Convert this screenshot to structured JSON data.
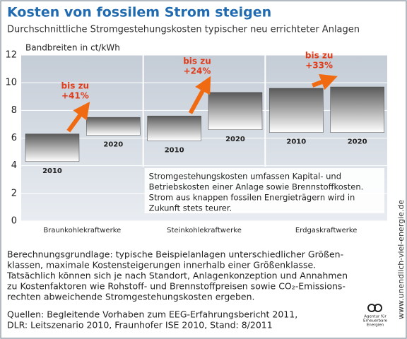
{
  "title": "Kosten von fossilem Strom steigen",
  "subtitle": "Durchschnittliche Stromgestehungskosten typischer neu errichteter Anlagen",
  "chart_data": {
    "type": "range-bar",
    "y_label": "Bandbreiten in ct/kWh",
    "ylim": [
      0,
      12
    ],
    "yticks": [
      0,
      2,
      4,
      6,
      8,
      10,
      12
    ],
    "grid": true,
    "groups": [
      {
        "name": "Braunkohlekraftwerke",
        "increase": [
          "bis zu",
          "+41%"
        ],
        "bars": [
          {
            "label": "2010",
            "low": 4.3,
            "high": 6.3
          },
          {
            "label": "2020",
            "low": 6.2,
            "high": 7.5
          }
        ]
      },
      {
        "name": "Steinkohlekraftwerke",
        "increase": [
          "bis zu",
          "+24%"
        ],
        "bars": [
          {
            "label": "2010",
            "low": 5.8,
            "high": 7.6
          },
          {
            "label": "2020",
            "low": 6.6,
            "high": 9.3
          }
        ]
      },
      {
        "name": "Erdgaskraftwerke",
        "increase": [
          "bis zu",
          "+33%"
        ],
        "bars": [
          {
            "label": "2010",
            "low": 6.4,
            "high": 9.6
          },
          {
            "label": "2020",
            "low": 6.4,
            "high": 9.7
          }
        ]
      }
    ],
    "note": [
      "Stromgestehungskosten umfassen Kapital- und",
      "Betriebskosten einer Anlage sowie Brennstoffkosten.",
      "Strom aus knappen fossilen Energieträgern wird in",
      "Zukunft stets teurer."
    ]
  },
  "footnote": [
    "Berechnungsgrundlage: typische Beispielanlagen unterschiedlicher Größen-",
    "klassen, maximale Kostensteigerungen innerhalb einer Größenklasse.",
    "Tatsächlich können sich je nach Standort, Anlagenkonzeption und Annahmen",
    "zu Kostenfaktoren wie Rohstoff- und Brennstoffpreisen sowie CO₂-Emissions-",
    "rechten abweichende Stromgestehungskosten ergeben."
  ],
  "sources": [
    "Quellen: Begleitende Vorhaben zum EEG-Erfahrungsbericht 2011,",
    "DLR: Leitszenario 2010, Fraunhofer ISE 2010, Stand: 8/2011"
  ],
  "url": "www.unendlich-viel-energie.de",
  "logo": [
    "Agentur für",
    "Erneuerbare",
    "Energien"
  ]
}
